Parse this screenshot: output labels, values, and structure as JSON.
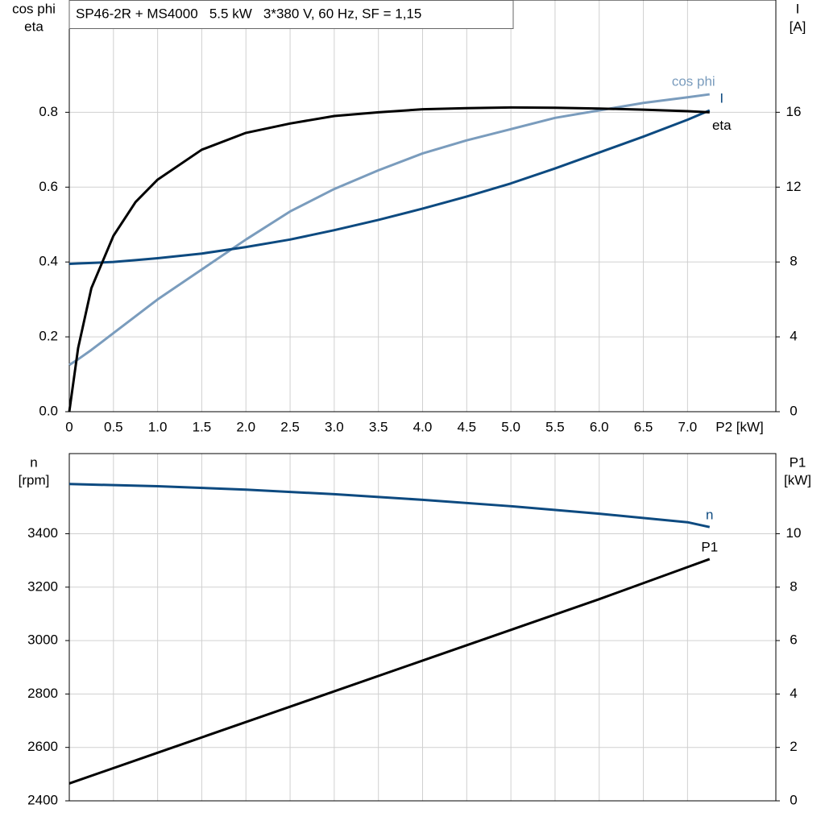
{
  "chart_data": [
    {
      "type": "line",
      "title": "SP46-2R + MS4000   5.5 kW   3*380 V, 60 Hz, SF = 1,15",
      "ylabel": [
        "cos phi",
        "eta"
      ],
      "y2label": [
        "I",
        "[A]"
      ],
      "xlabel": "P2 [kW]",
      "x": [
        0,
        0.1,
        0.25,
        0.5,
        0.75,
        1,
        1.5,
        2,
        2.5,
        3,
        3.5,
        4,
        4.5,
        5,
        5.5,
        6,
        6.5,
        7,
        7.25
      ],
      "series": [
        {
          "name": "cos phi",
          "color": "#7a9cbd",
          "values": [
            0.125,
            0.14,
            0.165,
            0.21,
            0.255,
            0.3,
            0.38,
            0.46,
            0.535,
            0.595,
            0.645,
            0.69,
            0.725,
            0.755,
            0.785,
            0.805,
            0.825,
            0.84,
            0.848
          ]
        },
        {
          "name": "I",
          "color": "#0d4a80",
          "axis": "y2",
          "values": [
            7.9,
            7.92,
            7.95,
            8.0,
            8.1,
            8.2,
            8.45,
            8.8,
            9.2,
            9.7,
            10.25,
            10.85,
            11.5,
            12.2,
            13.0,
            13.85,
            14.7,
            15.6,
            16.1
          ]
        },
        {
          "name": "eta",
          "color": "#000000",
          "values": [
            0,
            0.17,
            0.33,
            0.47,
            0.56,
            0.62,
            0.7,
            0.745,
            0.77,
            0.79,
            0.8,
            0.808,
            0.811,
            0.813,
            0.812,
            0.81,
            0.807,
            0.803,
            0.8
          ]
        }
      ],
      "xlim": [
        0,
        8
      ],
      "xticks": [
        0,
        0.5,
        {
          "value": 1,
          "label": "1.0"
        },
        1.5,
        {
          "value": 2,
          "label": "2.0"
        },
        2.5,
        {
          "value": 3,
          "label": "3.0"
        },
        3.5,
        {
          "value": 4,
          "label": "4.0"
        },
        4.5,
        {
          "value": 5,
          "label": "5.0"
        },
        5.5,
        {
          "value": 6,
          "label": "6.0"
        },
        6.5,
        {
          "value": 7,
          "label": "7.0"
        }
      ],
      "ylim": [
        0,
        1.1
      ],
      "yticks": [
        {
          "value": 0,
          "label": "0.0"
        },
        0.2,
        0.4,
        0.6,
        0.8
      ],
      "y2lim": [
        0,
        22
      ],
      "y2ticks": [
        0,
        4,
        8,
        12,
        16
      ],
      "grid": true
    },
    {
      "type": "line",
      "ylabel": [
        "n",
        "[rpm]"
      ],
      "y2label": [
        "P1",
        "[kW]"
      ],
      "x": [
        0,
        1,
        2,
        3,
        4,
        5,
        6,
        7,
        7.25
      ],
      "series": [
        {
          "name": "n",
          "color": "#0d4a80",
          "values": [
            3586,
            3578,
            3565,
            3548,
            3527,
            3503,
            3475,
            3443,
            3425
          ]
        },
        {
          "name": "P1",
          "color": "#000000",
          "axis": "y2",
          "values": [
            0.65,
            1.8,
            2.95,
            4.1,
            5.25,
            6.4,
            7.55,
            8.75,
            9.05
          ]
        }
      ],
      "xlim": [
        0,
        8
      ],
      "ylim": [
        2400,
        3700
      ],
      "yticks": [
        2400,
        2600,
        2800,
        3000,
        3200,
        3400
      ],
      "y2lim": [
        0,
        13
      ],
      "y2ticks": [
        0,
        2,
        4,
        6,
        8,
        10
      ],
      "grid": true
    }
  ]
}
